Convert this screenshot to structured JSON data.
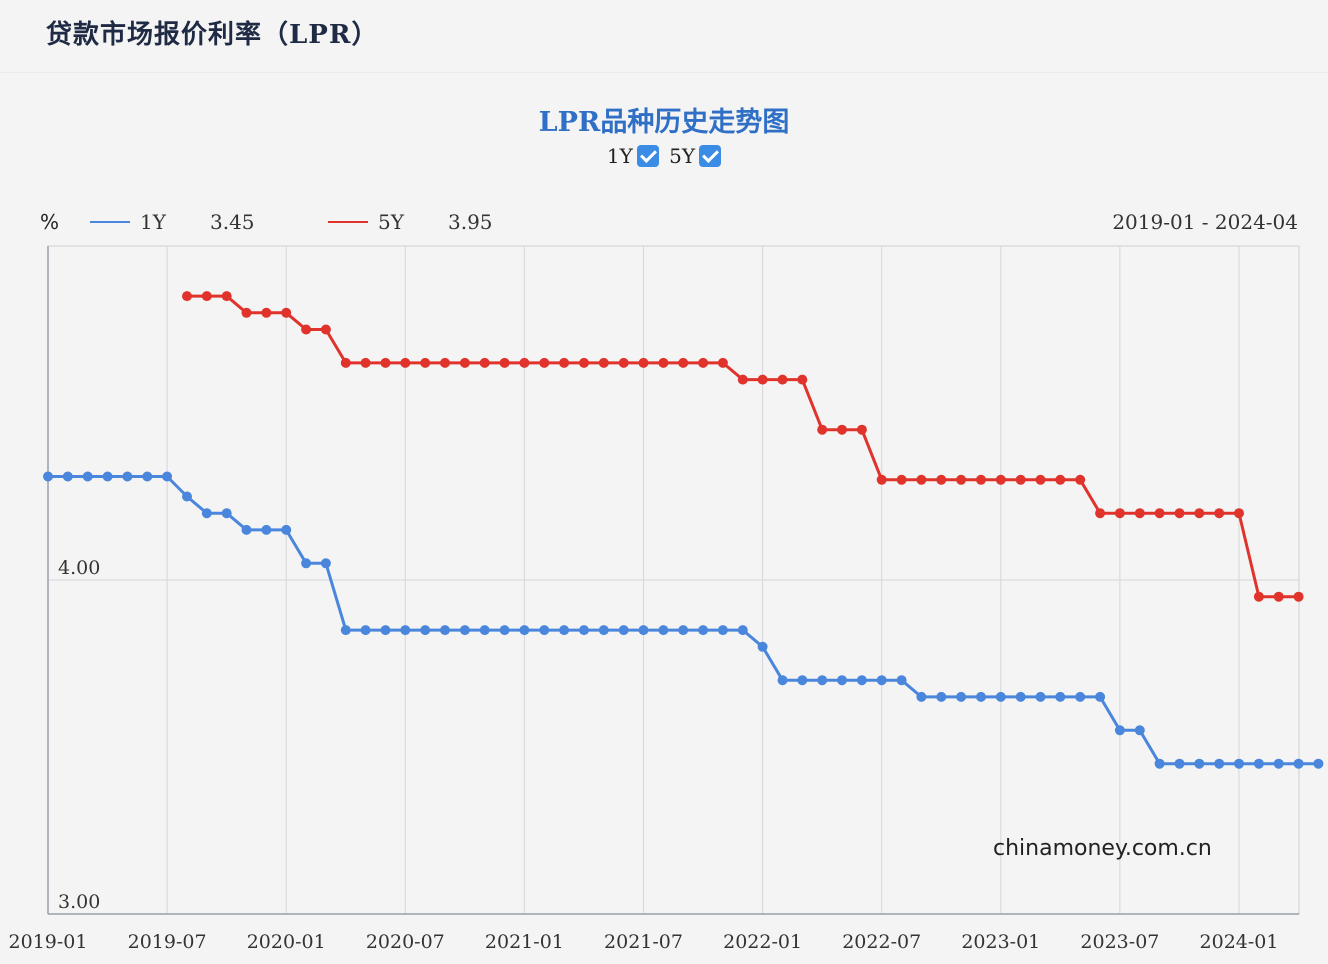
{
  "page": {
    "title": "贷款市场报价利率（LPR）"
  },
  "chart": {
    "title": "LPR品种历史走势图",
    "toggles": [
      {
        "label": "1Y",
        "checked": true
      },
      {
        "label": "5Y",
        "checked": true
      }
    ],
    "unit": "%",
    "date_range": "2019-01 - 2024-04",
    "watermark": "chinamoney.com.cn"
  },
  "colors": {
    "1Y": "#4a86dc",
    "5Y": "#e0332c",
    "grid": "#d6d6dc"
  },
  "chart_data": {
    "type": "line",
    "x_tick_labels": [
      "2019-01",
      "2019-07",
      "2020-01",
      "2020-07",
      "2021-01",
      "2021-07",
      "2022-01",
      "2022-07",
      "2023-01",
      "2023-07",
      "2024-01"
    ],
    "y_tick_labels": [
      "4.00",
      "3.00"
    ],
    "ylim": [
      3.0,
      5.0
    ],
    "x_start": "2019-01",
    "grid": true,
    "legend_position": "top-left",
    "series": [
      {
        "name": "1Y",
        "latest": "3.45",
        "start": "2019-01",
        "values": [
          4.31,
          4.31,
          4.31,
          4.31,
          4.31,
          4.31,
          4.31,
          4.25,
          4.2,
          4.2,
          4.15,
          4.15,
          4.15,
          4.05,
          4.05,
          3.85,
          3.85,
          3.85,
          3.85,
          3.85,
          3.85,
          3.85,
          3.85,
          3.85,
          3.85,
          3.85,
          3.85,
          3.85,
          3.85,
          3.85,
          3.85,
          3.85,
          3.85,
          3.85,
          3.85,
          3.85,
          3.8,
          3.7,
          3.7,
          3.7,
          3.7,
          3.7,
          3.7,
          3.7,
          3.65,
          3.65,
          3.65,
          3.65,
          3.65,
          3.65,
          3.65,
          3.65,
          3.65,
          3.65,
          3.55,
          3.55,
          3.45,
          3.45,
          3.45,
          3.45,
          3.45,
          3.45,
          3.45,
          3.45,
          3.45
        ]
      },
      {
        "name": "5Y",
        "latest": "3.95",
        "start": "2019-08",
        "values": [
          4.85,
          4.85,
          4.85,
          4.8,
          4.8,
          4.8,
          4.75,
          4.75,
          4.65,
          4.65,
          4.65,
          4.65,
          4.65,
          4.65,
          4.65,
          4.65,
          4.65,
          4.65,
          4.65,
          4.65,
          4.65,
          4.65,
          4.65,
          4.65,
          4.65,
          4.65,
          4.65,
          4.65,
          4.6,
          4.6,
          4.6,
          4.6,
          4.45,
          4.45,
          4.45,
          4.3,
          4.3,
          4.3,
          4.3,
          4.3,
          4.3,
          4.3,
          4.3,
          4.3,
          4.3,
          4.3,
          4.2,
          4.2,
          4.2,
          4.2,
          4.2,
          4.2,
          4.2,
          4.2,
          3.95,
          3.95,
          3.95
        ]
      }
    ]
  }
}
